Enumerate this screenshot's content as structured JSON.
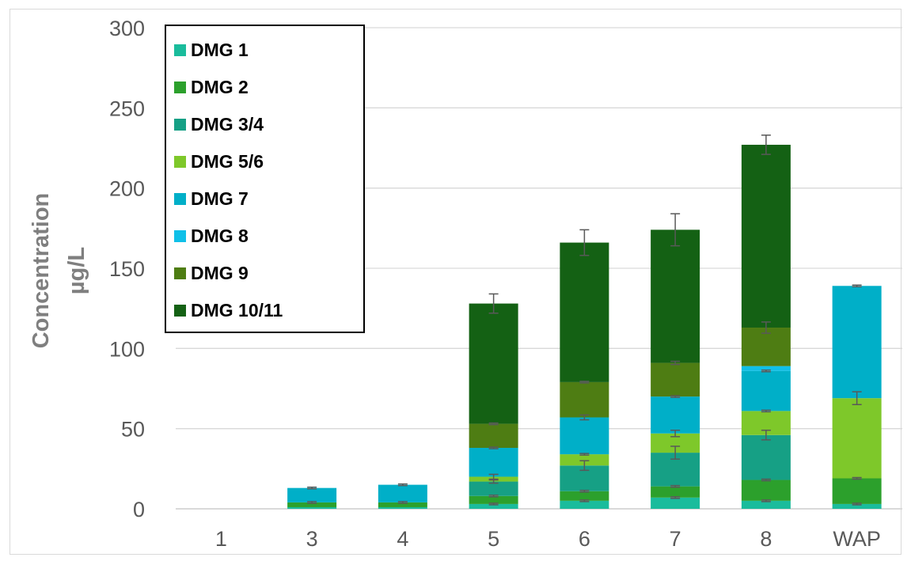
{
  "chart_data": {
    "type": "bar",
    "stacked": true,
    "categories": [
      "1",
      "3",
      "4",
      "5",
      "6",
      "7",
      "8",
      "WAP"
    ],
    "ylabel": "Concentration µg/L",
    "ylabel_lines": [
      "Concentration",
      "µg/L"
    ],
    "ylim": [
      0,
      300
    ],
    "yticks": [
      0,
      50,
      100,
      150,
      200,
      250,
      300
    ],
    "grid": true,
    "legend_position": "top-left",
    "error_bars": "on cumulative tops of stacked segments",
    "series": [
      {
        "name": "DMG 1",
        "color": "#1abc9c",
        "values": [
          0,
          1,
          1,
          3,
          5,
          7,
          5,
          3
        ],
        "errors": [
          0,
          0,
          0,
          0.5,
          0.5,
          0.5,
          0.5,
          0.5
        ]
      },
      {
        "name": "DMG 2",
        "color": "#2ca02c",
        "values": [
          0,
          3,
          3,
          5,
          6,
          7,
          13,
          16
        ],
        "errors": [
          0,
          0.5,
          0.5,
          0.5,
          0.5,
          0.5,
          0.5,
          0.5
        ]
      },
      {
        "name": "DMG 3/4",
        "color": "#16a085",
        "values": [
          0,
          0,
          0,
          9,
          16,
          21,
          28,
          0
        ],
        "errors": [
          0,
          0,
          0,
          1,
          3,
          4,
          3,
          0
        ]
      },
      {
        "name": "DMG 5/6",
        "color": "#7ec82a",
        "values": [
          0,
          0,
          0,
          3,
          7,
          12,
          15,
          50
        ],
        "errors": [
          0,
          0,
          0,
          1.5,
          0.5,
          2,
          0.5,
          4
        ]
      },
      {
        "name": "DMG 7",
        "color": "#00afc8",
        "values": [
          0,
          9,
          11,
          18,
          23,
          23,
          25,
          70
        ],
        "errors": [
          0,
          0.5,
          0.5,
          0.5,
          1.5,
          0.5,
          0.5,
          0.5
        ]
      },
      {
        "name": "DMG 8",
        "color": "#10c0e8",
        "values": [
          0,
          0,
          0,
          0,
          0,
          0,
          3,
          0
        ],
        "errors": [
          0,
          0,
          0,
          0,
          0,
          0,
          0,
          0
        ]
      },
      {
        "name": "DMG 9",
        "color": "#4e7d13",
        "values": [
          0,
          0,
          0,
          15,
          22,
          21,
          24,
          0
        ],
        "errors": [
          0,
          0,
          0,
          0.5,
          0.5,
          1,
          3.5,
          0
        ]
      },
      {
        "name": "DMG 10/11",
        "color": "#146114",
        "values": [
          0,
          0,
          0,
          75,
          87,
          83,
          114,
          0
        ],
        "errors": [
          0,
          0,
          0,
          6,
          8,
          10,
          6,
          0
        ]
      }
    ]
  }
}
